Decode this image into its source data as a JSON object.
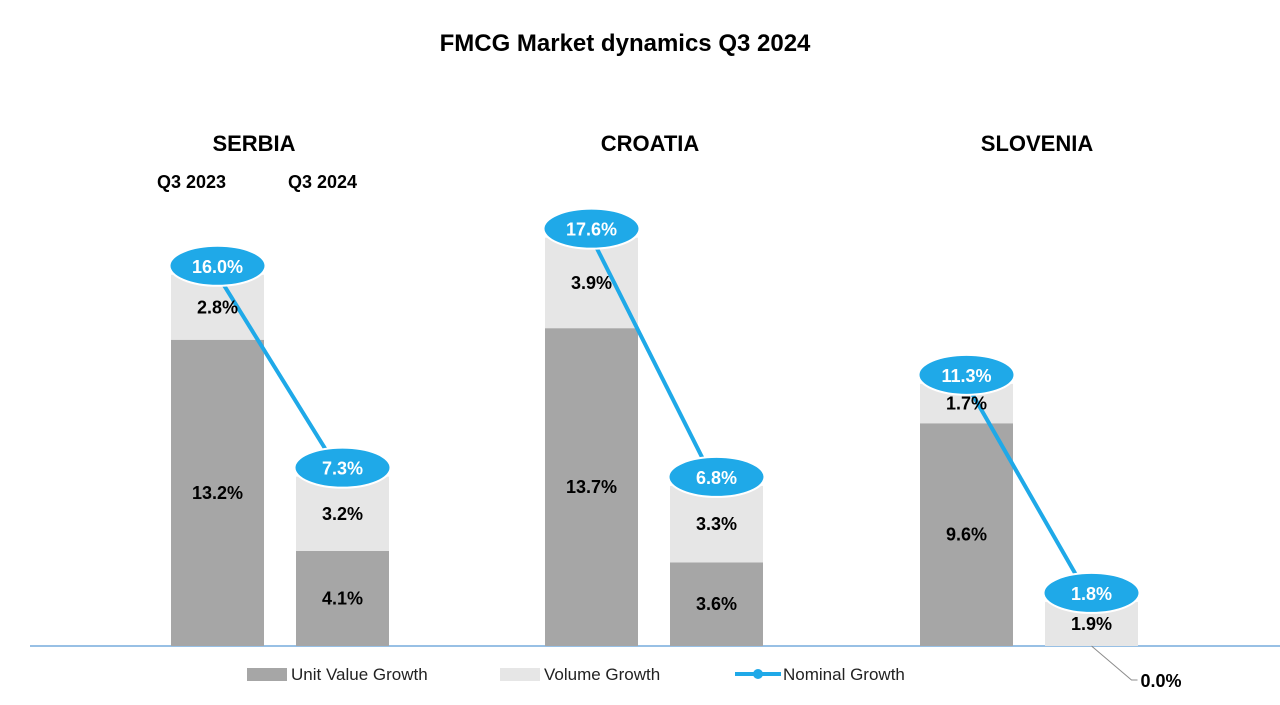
{
  "chart_data": {
    "type": "bar",
    "stacked": true,
    "title": "FMCG Market dynamics Q3 2024",
    "periods": [
      "Q3 2023",
      "Q3 2024"
    ],
    "period_labels_shown_for": "SERBIA",
    "groups": [
      {
        "name": "SERBIA",
        "bars": [
          {
            "period": "Q3 2023",
            "unit_value": 13.2,
            "volume": 2.8,
            "nominal": 16.0
          },
          {
            "period": "Q3 2024",
            "unit_value": 4.1,
            "volume": 3.2,
            "nominal": 7.3
          }
        ]
      },
      {
        "name": "CROATIA",
        "bars": [
          {
            "period": "Q3 2023",
            "unit_value": 13.7,
            "volume": 3.9,
            "nominal": 17.6
          },
          {
            "period": "Q3 2024",
            "unit_value": 3.6,
            "volume": 3.3,
            "nominal": 6.8
          }
        ]
      },
      {
        "name": "SLOVENIA",
        "bars": [
          {
            "period": "Q3 2023",
            "unit_value": 9.6,
            "volume": 1.7,
            "nominal": 11.3
          },
          {
            "period": "Q3 2024",
            "unit_value": 0.0,
            "volume": 1.9,
            "nominal": 1.8
          }
        ]
      }
    ],
    "series": [
      {
        "name": "Unit Value Growth",
        "key": "unit_value",
        "color": "#a6a6a6"
      },
      {
        "name": "Volume Growth",
        "key": "volume",
        "color": "#e6e6e6"
      },
      {
        "name": "Nominal Growth",
        "key": "nominal",
        "color": "#1fa9e8"
      }
    ],
    "callout": {
      "group": "SLOVENIA",
      "period": "Q3 2024",
      "series": "unit_value",
      "label": "0.0%"
    },
    "legend_position": "bottom",
    "grid": false,
    "ylim": [
      0,
      18
    ]
  }
}
